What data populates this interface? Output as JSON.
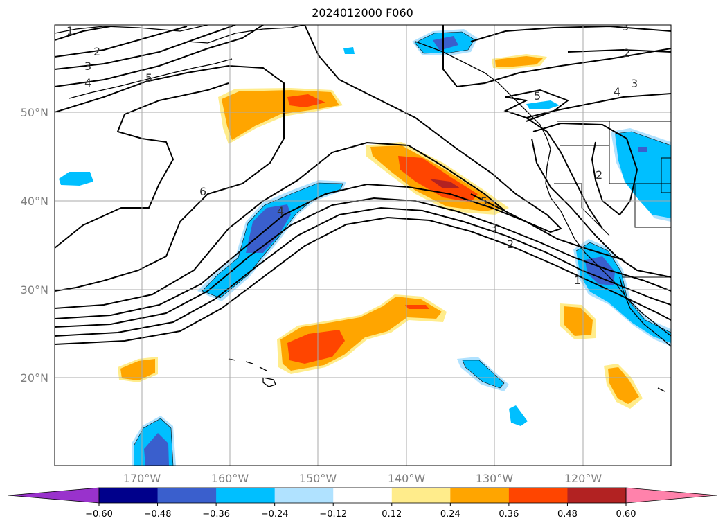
{
  "title": "2024012000 F060",
  "map": {
    "lat_ticks": [
      "50°N",
      "40°N",
      "30°N",
      "20°N"
    ],
    "lon_ticks": [
      "170°W",
      "160°W",
      "150°W",
      "140°W",
      "130°W",
      "120°W"
    ],
    "contour_labels": [
      "1",
      "2",
      "3",
      "4",
      "5",
      "6",
      "4",
      "5",
      "3",
      "2",
      "5",
      "4",
      "3",
      "2",
      "2",
      "1",
      "3"
    ]
  },
  "colorbar": {
    "ticks": [
      "−0.60",
      "−0.48",
      "−0.36",
      "−0.24",
      "−0.12",
      "0.12",
      "0.24",
      "0.36",
      "0.48",
      "0.60"
    ],
    "colors": [
      "#9932cc",
      "#00008b",
      "#3a5fcd",
      "#00bfff",
      "#b0e2ff",
      "#ffffff",
      "#ffec8b",
      "#ffa500",
      "#ff4500",
      "#b22222",
      "#ff82ab"
    ]
  },
  "fill_colors": {
    "neg_light": "#b0e2ff",
    "neg_mid": "#00bfff",
    "neg_strong": "#3a5fcd",
    "pos_light": "#ffec8b",
    "pos_mid": "#ffa500",
    "pos_strong": "#ff4500",
    "pos_extreme": "#b22222"
  }
}
